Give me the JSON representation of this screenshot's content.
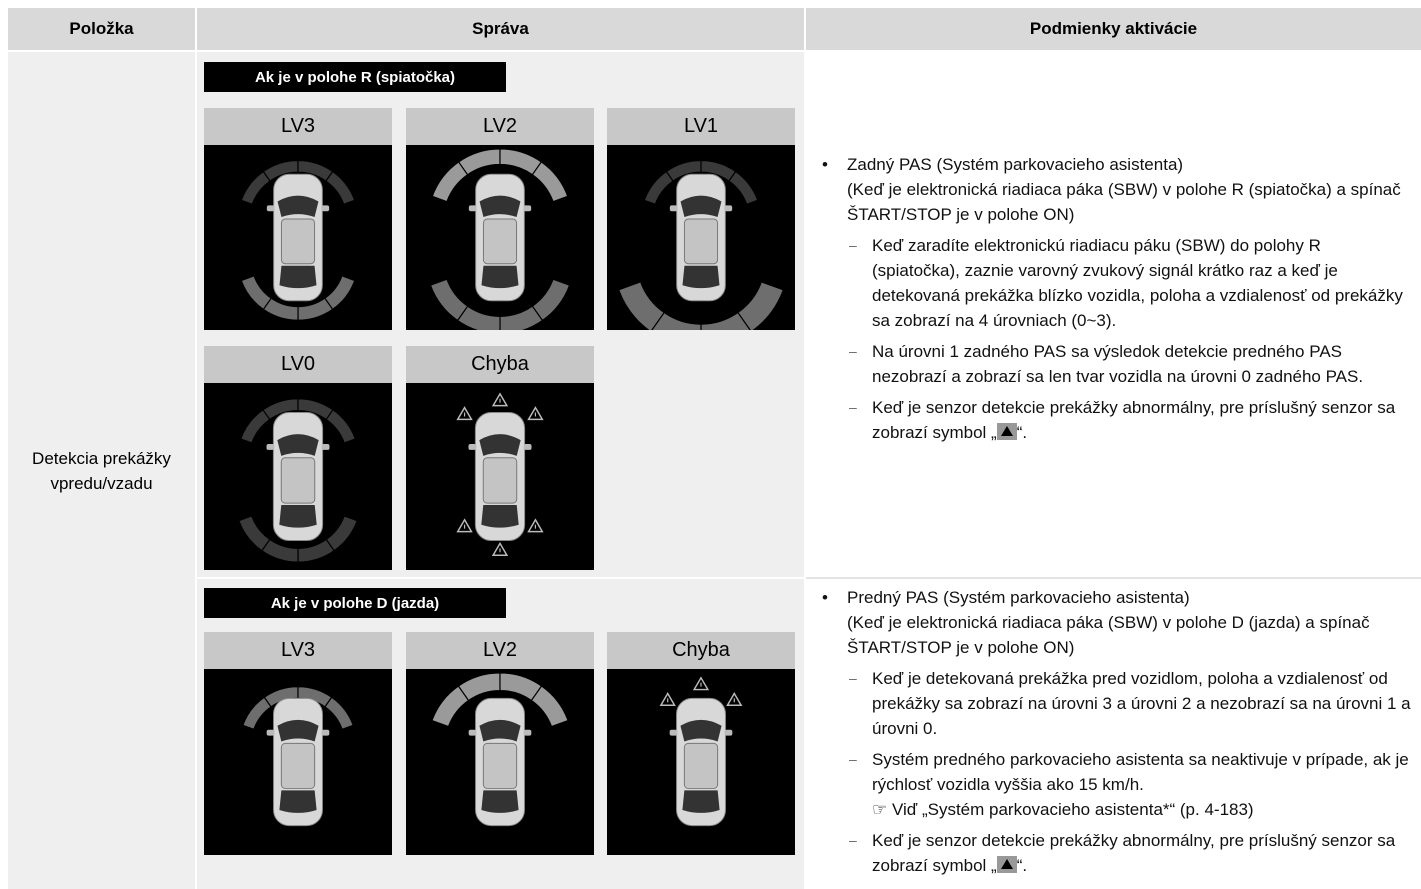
{
  "table": {
    "headers": [
      "Položka",
      "Správa",
      "Podmienky aktivácie"
    ],
    "item": "Detekcia prekážky vpredu/vzadu",
    "sections": [
      {
        "label": "Ak je v polohe R (spiatočka)",
        "panels": [
          "LV3",
          "LV2",
          "LV1",
          "LV0",
          "Chyba"
        ],
        "conditions": {
          "title": "Zadný PAS (Systém parkovacieho asistenta)",
          "note": "(Keď je elektronická riadiaca páka (SBW) v polohe R (spiatočka) a spínač ŠTART/STOP je v polohe ON)",
          "items": [
            {
              "text": "Keď zaradíte elektronickú riadiacu páku (SBW) do polohy R (spiatočka), zaznie varovný zvukový signál krátko raz a keď je detekovaná prekážka blízko vozidla, poloha a vzdialenosť od prekážky sa zobrazí na 4 úrovniach (0~3)."
            },
            {
              "text": "Na úrovni 1 zadného PAS sa výsledok detekcie predného PAS nezobrazí a zobrazí sa len tvar vozidla na úrovni 0 zadného PAS."
            },
            {
              "text": "Keď je senzor detekcie prekážky abnormálny, pre príslušný senzor sa zobrazí symbol „",
              "after_symbol": "“."
            }
          ]
        }
      },
      {
        "label": "Ak je v polohe D (jazda)",
        "panels": [
          "LV3",
          "LV2",
          "Chyba"
        ],
        "conditions": {
          "title": "Predný PAS (Systém parkovacieho asistenta)",
          "note": "(Keď je elektronická riadiaca páka (SBW) v polohe D (jazda) a spínač ŠTART/STOP je v polohe ON)",
          "items": [
            {
              "text": "Keď je detekovaná prekážka pred vozidlom, poloha a vzdialenosť od prekážky sa zobrazí na úrovni 3 a úrovni 2 a nezobrazí sa na úrovni 1 a úrovni 0."
            },
            {
              "text": "Systém predného parkovacieho asistenta sa neaktivuje v prípade, ak je rýchlosť vozidla vyššia ako 15 km/h.",
              "reference": "☞ Viď „Systém parkovacieho asistenta*“ (p. 4-183)"
            },
            {
              "text": "Keď je senzor detekcie prekážky abnormálny, pre príslušný senzor sa zobrazí symbol „",
              "after_symbol": "“."
            }
          ]
        }
      }
    ]
  }
}
